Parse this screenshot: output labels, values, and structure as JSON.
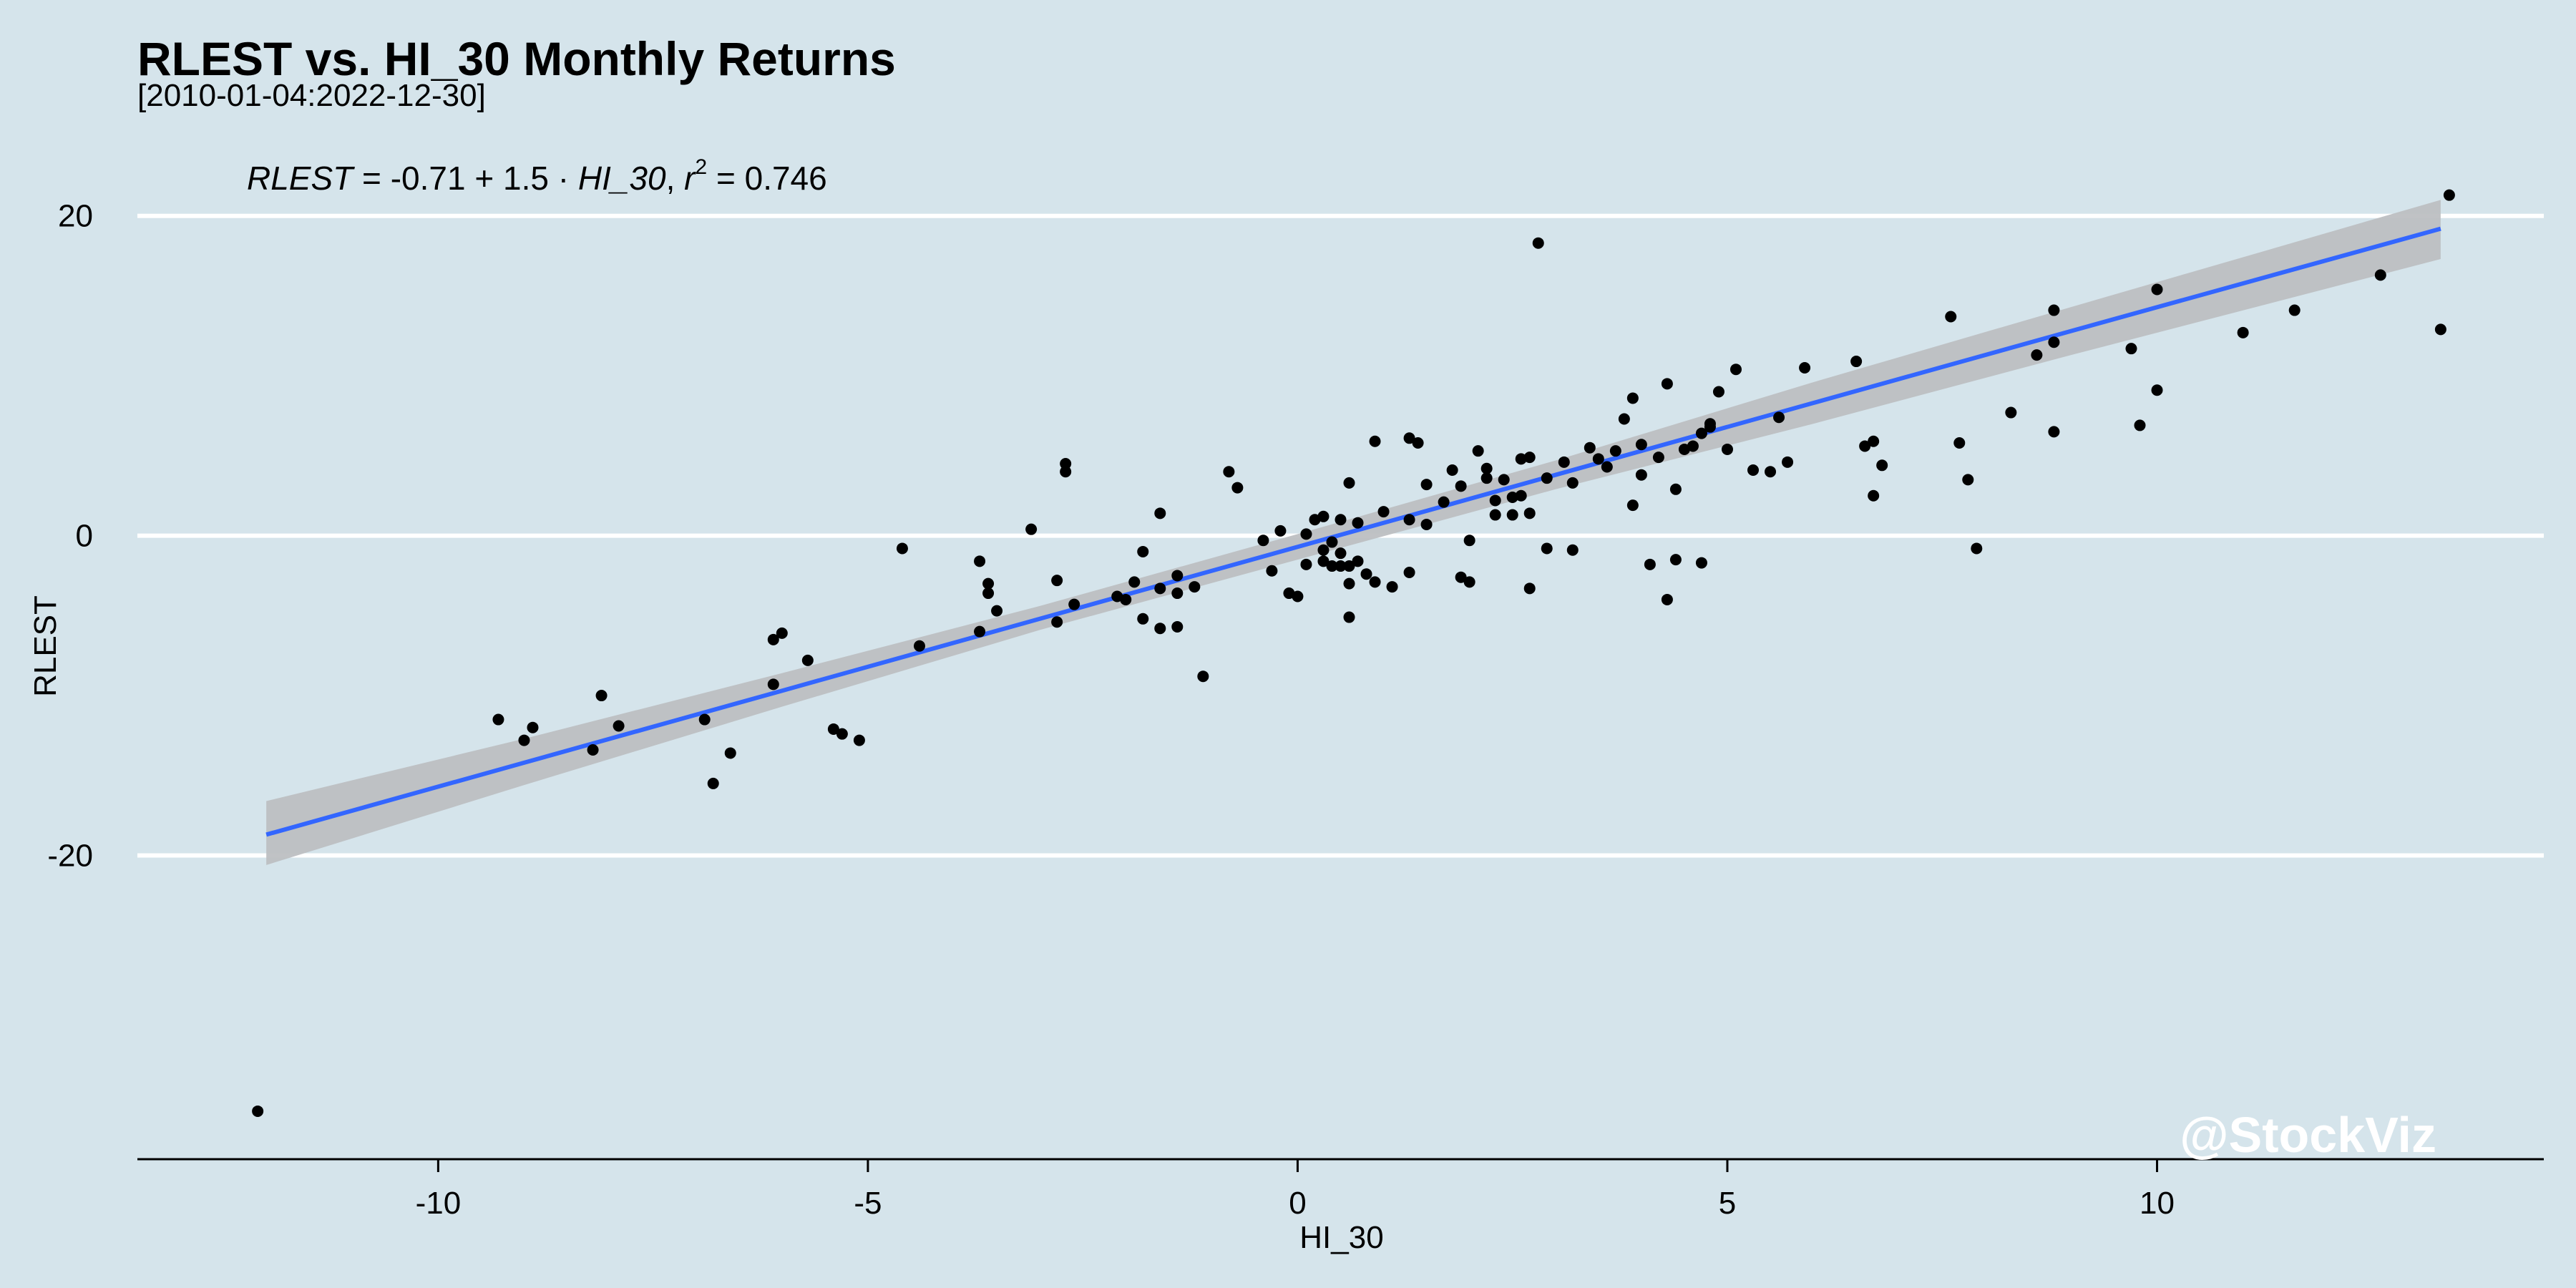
{
  "chart_data": {
    "type": "scatter",
    "title": "RLEST vs. HI_30 Monthly Returns",
    "subtitle": "[2010-01-04:2022-12-30]",
    "xlabel": "HI_30",
    "ylabel": "RLEST",
    "xlim": [
      -13.5,
      14.5
    ],
    "ylim": [
      -39,
      25
    ],
    "x_ticks": [
      -10,
      -5,
      0,
      5,
      10
    ],
    "y_ticks": [
      -20,
      0,
      20
    ],
    "grid": "horizontal-major",
    "equation": {
      "lhs": "RLEST",
      "intercept": "-0.71",
      "slope": "1.5",
      "var": "HI_30",
      "r2_label": "r",
      "r2_exp": "2",
      "r2_value": "0.746"
    },
    "fit": {
      "x": [
        -12.0,
        -9.0,
        -6.0,
        -3.0,
        0.0,
        3.0,
        6.0,
        9.0,
        13.3
      ],
      "y": [
        -18.7,
        -14.2,
        -9.7,
        -5.2,
        -0.7,
        3.8,
        8.3,
        12.8,
        19.2
      ],
      "lower": [
        -20.6,
        -15.6,
        -10.7,
        -5.9,
        -1.5,
        2.9,
        7.0,
        11.3,
        17.3
      ],
      "upper": [
        -16.6,
        -12.7,
        -8.6,
        -4.4,
        0.1,
        4.7,
        9.6,
        14.3,
        21.0
      ]
    },
    "points": [
      [
        -12.1,
        -36.0
      ],
      [
        -9.3,
        -11.5
      ],
      [
        -9.0,
        -12.8
      ],
      [
        -8.9,
        -12.0
      ],
      [
        -8.2,
        -13.4
      ],
      [
        -8.1,
        -10.0
      ],
      [
        -7.9,
        -11.9
      ],
      [
        -6.9,
        -11.5
      ],
      [
        -6.8,
        -15.5
      ],
      [
        -6.6,
        -13.6
      ],
      [
        -6.1,
        -6.5
      ],
      [
        -6.0,
        -6.1
      ],
      [
        -6.1,
        -9.3
      ],
      [
        -5.7,
        -7.8
      ],
      [
        -5.4,
        -12.1
      ],
      [
        -5.3,
        -12.4
      ],
      [
        -5.1,
        -12.8
      ],
      [
        -4.6,
        -0.8
      ],
      [
        -4.4,
        -6.9
      ],
      [
        -3.7,
        -6.0
      ],
      [
        -3.7,
        -1.6
      ],
      [
        -3.6,
        -3.0
      ],
      [
        -3.6,
        -3.6
      ],
      [
        -3.5,
        -4.7
      ],
      [
        -3.1,
        0.4
      ],
      [
        -2.8,
        -2.8
      ],
      [
        -2.8,
        -5.4
      ],
      [
        -2.7,
        4.5
      ],
      [
        -2.7,
        4.0
      ],
      [
        -2.6,
        -4.3
      ],
      [
        -2.1,
        -3.8
      ],
      [
        -2.0,
        -4.0
      ],
      [
        -1.9,
        -2.9
      ],
      [
        -1.8,
        -5.2
      ],
      [
        -1.8,
        -1.0
      ],
      [
        -1.6,
        -3.3
      ],
      [
        -1.6,
        1.4
      ],
      [
        -1.6,
        -5.8
      ],
      [
        -1.4,
        -5.7
      ],
      [
        -1.4,
        -2.5
      ],
      [
        -1.4,
        -3.6
      ],
      [
        -1.2,
        -3.2
      ],
      [
        -1.1,
        -8.8
      ],
      [
        -0.8,
        4.0
      ],
      [
        -0.7,
        3.0
      ],
      [
        -0.4,
        -0.3
      ],
      [
        -0.3,
        -2.2
      ],
      [
        -0.2,
        0.3
      ],
      [
        -0.1,
        -3.6
      ],
      [
        0.0,
        -3.8
      ],
      [
        0.1,
        0.1
      ],
      [
        0.1,
        -1.8
      ],
      [
        0.2,
        1.0
      ],
      [
        0.3,
        1.2
      ],
      [
        0.3,
        -1.6
      ],
      [
        0.3,
        -0.9
      ],
      [
        0.4,
        -0.4
      ],
      [
        0.4,
        -1.9
      ],
      [
        0.5,
        -1.1
      ],
      [
        0.5,
        -1.9
      ],
      [
        0.5,
        1.0
      ],
      [
        0.6,
        3.3
      ],
      [
        0.6,
        -5.1
      ],
      [
        0.6,
        -3.0
      ],
      [
        0.6,
        -1.9
      ],
      [
        0.7,
        0.8
      ],
      [
        0.7,
        -1.6
      ],
      [
        0.8,
        -2.4
      ],
      [
        0.9,
        -2.9
      ],
      [
        0.9,
        5.9
      ],
      [
        1.0,
        1.5
      ],
      [
        1.1,
        -3.2
      ],
      [
        1.3,
        6.1
      ],
      [
        1.3,
        -2.3
      ],
      [
        1.3,
        1.0
      ],
      [
        1.4,
        5.8
      ],
      [
        1.5,
        0.7
      ],
      [
        1.5,
        3.2
      ],
      [
        1.7,
        2.1
      ],
      [
        1.8,
        4.1
      ],
      [
        1.9,
        3.1
      ],
      [
        1.9,
        -2.6
      ],
      [
        2.0,
        -0.3
      ],
      [
        2.0,
        -2.9
      ],
      [
        2.1,
        5.3
      ],
      [
        2.2,
        4.2
      ],
      [
        2.2,
        3.6
      ],
      [
        2.3,
        2.2
      ],
      [
        2.3,
        1.3
      ],
      [
        2.4,
        3.5
      ],
      [
        2.5,
        2.4
      ],
      [
        2.5,
        1.3
      ],
      [
        2.6,
        4.8
      ],
      [
        2.6,
        2.5
      ],
      [
        2.7,
        1.4
      ],
      [
        2.7,
        -3.3
      ],
      [
        2.7,
        4.9
      ],
      [
        2.8,
        18.3
      ],
      [
        2.9,
        -0.8
      ],
      [
        2.9,
        3.6
      ],
      [
        3.1,
        4.6
      ],
      [
        3.2,
        3.3
      ],
      [
        3.2,
        -0.9
      ],
      [
        3.4,
        5.5
      ],
      [
        3.5,
        4.8
      ],
      [
        3.6,
        4.3
      ],
      [
        3.7,
        5.3
      ],
      [
        3.8,
        7.3
      ],
      [
        3.9,
        1.9
      ],
      [
        3.9,
        8.6
      ],
      [
        4.0,
        5.7
      ],
      [
        4.0,
        3.8
      ],
      [
        4.1,
        -1.8
      ],
      [
        4.2,
        4.9
      ],
      [
        4.3,
        9.5
      ],
      [
        4.3,
        -4.0
      ],
      [
        4.4,
        -1.5
      ],
      [
        4.4,
        2.9
      ],
      [
        4.5,
        5.4
      ],
      [
        4.6,
        5.6
      ],
      [
        4.7,
        6.4
      ],
      [
        4.7,
        -1.7
      ],
      [
        4.8,
        7.0
      ],
      [
        4.8,
        6.8
      ],
      [
        4.9,
        9.0
      ],
      [
        5.0,
        5.4
      ],
      [
        5.1,
        10.4
      ],
      [
        5.3,
        4.1
      ],
      [
        5.5,
        4.0
      ],
      [
        5.6,
        7.4
      ],
      [
        5.7,
        4.6
      ],
      [
        5.9,
        10.5
      ],
      [
        6.5,
        10.9
      ],
      [
        6.6,
        5.6
      ],
      [
        6.7,
        5.9
      ],
      [
        6.7,
        2.5
      ],
      [
        6.8,
        4.4
      ],
      [
        7.6,
        13.7
      ],
      [
        7.7,
        5.8
      ],
      [
        7.8,
        3.5
      ],
      [
        7.9,
        -0.8
      ],
      [
        8.3,
        7.7
      ],
      [
        8.6,
        11.3
      ],
      [
        8.8,
        12.1
      ],
      [
        8.8,
        14.1
      ],
      [
        8.8,
        6.5
      ],
      [
        9.7,
        11.7
      ],
      [
        9.8,
        6.9
      ],
      [
        10.0,
        15.4
      ],
      [
        10.0,
        9.1
      ],
      [
        11.0,
        12.7
      ],
      [
        11.6,
        14.1
      ],
      [
        12.6,
        16.3
      ],
      [
        13.4,
        21.3
      ],
      [
        13.3,
        12.9
      ]
    ]
  },
  "watermark": "@StockViz"
}
